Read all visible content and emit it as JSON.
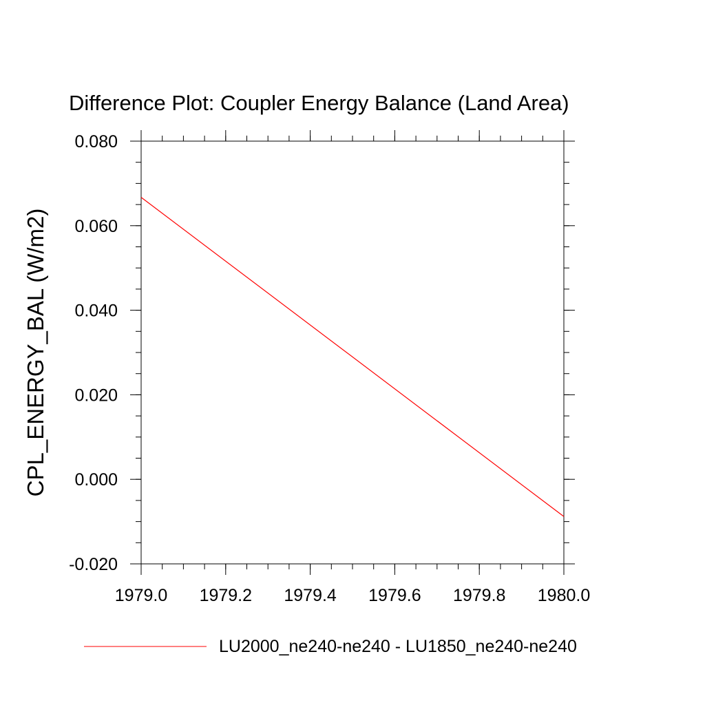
{
  "chart_data": {
    "type": "line",
    "title": "Difference Plot: Coupler Energy Balance (Land Area)",
    "xlabel": "",
    "ylabel": "CPL_ENERGY_BAL  (W/m2)",
    "xlim": [
      1979.0,
      1980.0
    ],
    "ylim": [
      -0.02,
      0.08
    ],
    "x_ticks": [
      "1979.0",
      "1979.2",
      "1979.4",
      "1979.6",
      "1979.8",
      "1980.0"
    ],
    "y_ticks": [
      "-0.020",
      "0.000",
      "0.020",
      "0.040",
      "0.060",
      "0.080"
    ],
    "grid": false,
    "legend_position": "bottom",
    "series": [
      {
        "name": "LU2000_ne240-ne240 - LU1850_ne240-ne240",
        "color": "#ff0000",
        "x": [
          1979.0,
          1980.0
        ],
        "y": [
          0.0667,
          -0.0088
        ]
      }
    ]
  }
}
